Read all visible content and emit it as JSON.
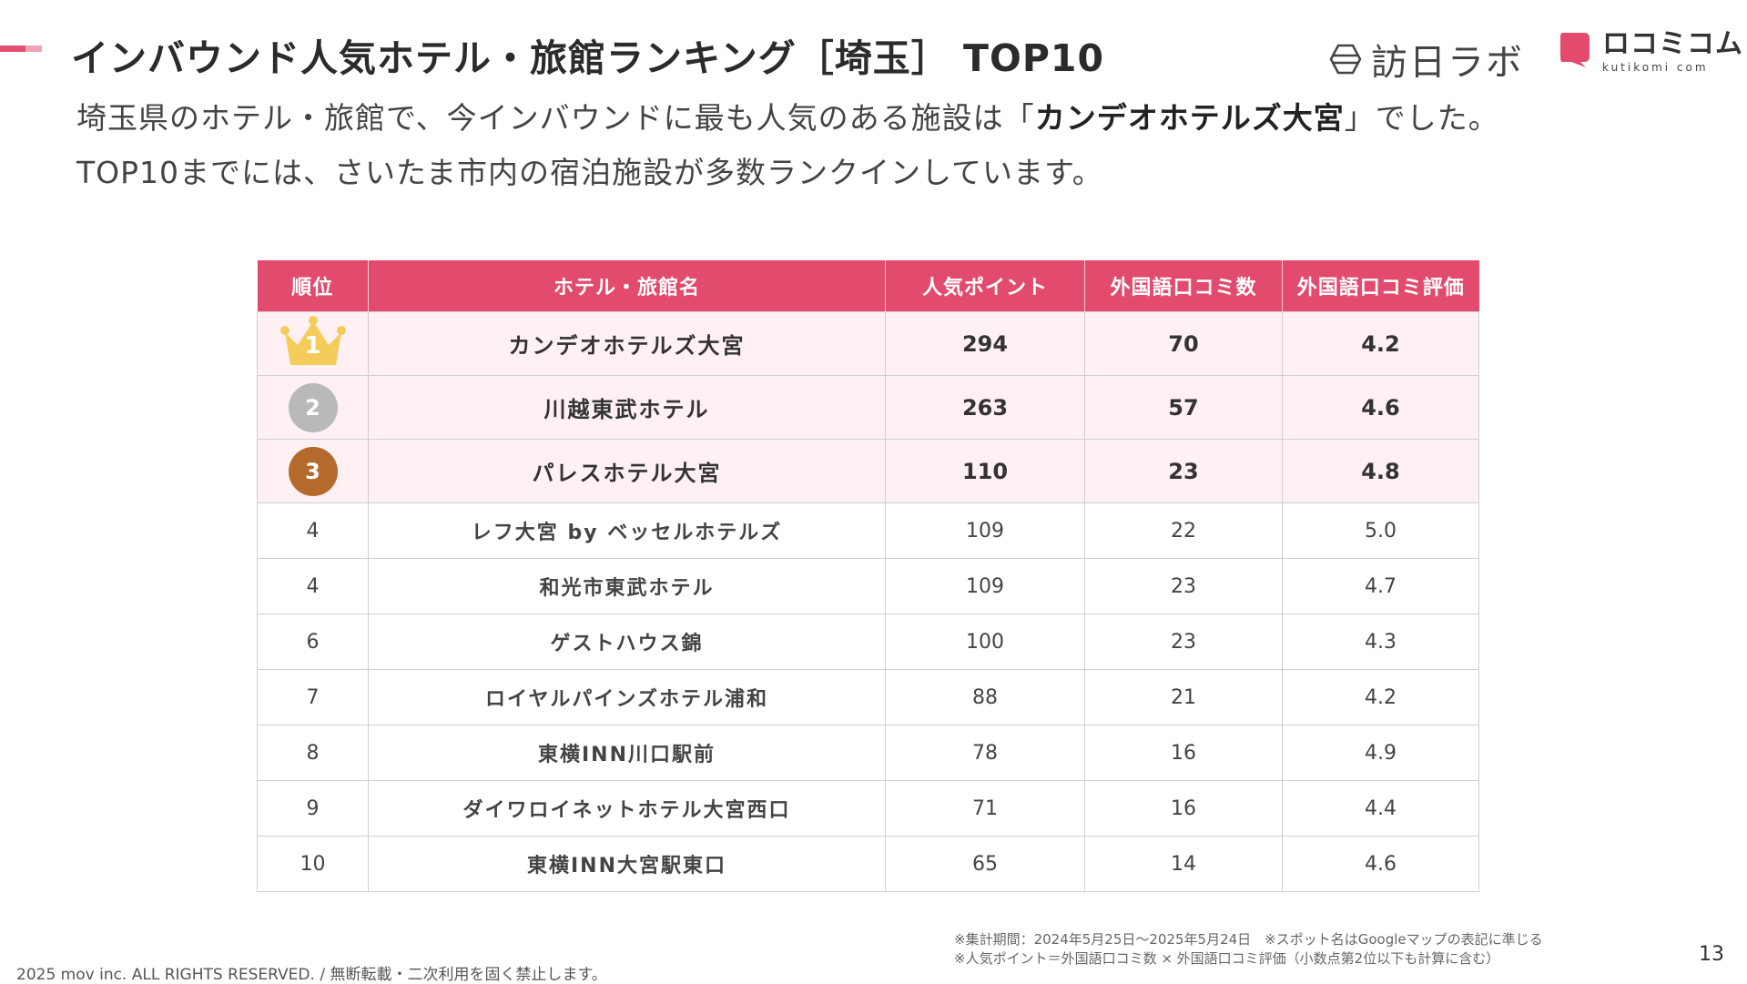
{
  "header": {
    "title": "インバウンド人気ホテル・旅館ランキング［埼玉］ TOP10",
    "logo_houbi": "訪日ラボ",
    "logo_kuchi_jp": "ロコミコム",
    "logo_kuchi_en": "kutikomi com"
  },
  "subtitle": {
    "line1_pre": "埼玉県のホテル・旅館で、今インバウンドに最も人気のある施設は「",
    "line1_bold": "カンデオホテルズ大宮",
    "line1_post": "」でした。",
    "line2": "TOP10までには、さいたま市内の宿泊施設が多数ランクインしています。"
  },
  "table": {
    "headers": [
      "順位",
      "ホテル・旅館名",
      "人気ポイント",
      "外国語口コミ数",
      "外国語口コミ評価"
    ],
    "rows": [
      {
        "rank": "1",
        "name": "カンデオホテルズ大宮",
        "points": "294",
        "reviews": "70",
        "rating": "4.2"
      },
      {
        "rank": "2",
        "name": "川越東武ホテル",
        "points": "263",
        "reviews": "57",
        "rating": "4.6"
      },
      {
        "rank": "3",
        "name": "パレスホテル大宮",
        "points": "110",
        "reviews": "23",
        "rating": "4.8"
      },
      {
        "rank": "4",
        "name": "レフ大宮 by ベッセルホテルズ",
        "points": "109",
        "reviews": "22",
        "rating": "5.0"
      },
      {
        "rank": "4",
        "name": "和光市東武ホテル",
        "points": "109",
        "reviews": "23",
        "rating": "4.7"
      },
      {
        "rank": "6",
        "name": "ゲストハウス錦",
        "points": "100",
        "reviews": "23",
        "rating": "4.3"
      },
      {
        "rank": "7",
        "name": "ロイヤルパインズホテル浦和",
        "points": "88",
        "reviews": "21",
        "rating": "4.2"
      },
      {
        "rank": "8",
        "name": "東横INN川口駅前",
        "points": "78",
        "reviews": "16",
        "rating": "4.9"
      },
      {
        "rank": "9",
        "name": "ダイワロイネットホテル大宮西口",
        "points": "71",
        "reviews": "16",
        "rating": "4.4"
      },
      {
        "rank": "10",
        "name": "東横INN大宮駅東口",
        "points": "65",
        "reviews": "14",
        "rating": "4.6"
      }
    ]
  },
  "notes": {
    "line1": "※集計期間：2024年5月25日〜2025年5月24日　※スポット名はGoogleマップの表記に準じる",
    "line2": "※人気ポイント＝外国語口コミ数 × 外国語口コミ評価（小数点第2位以下も計算に含む）"
  },
  "footer": {
    "copyright": "2025 mov inc. ALL RIGHTS RESERVED. / 無断転載・二次利用を固く禁止します。",
    "page_number": "13"
  },
  "colors": {
    "accent": "#e24b6d",
    "gold": "#f5cc5a",
    "silver": "#b9b9b9",
    "bronze": "#b36a2c",
    "top_row_bg": "#fff0f4"
  }
}
